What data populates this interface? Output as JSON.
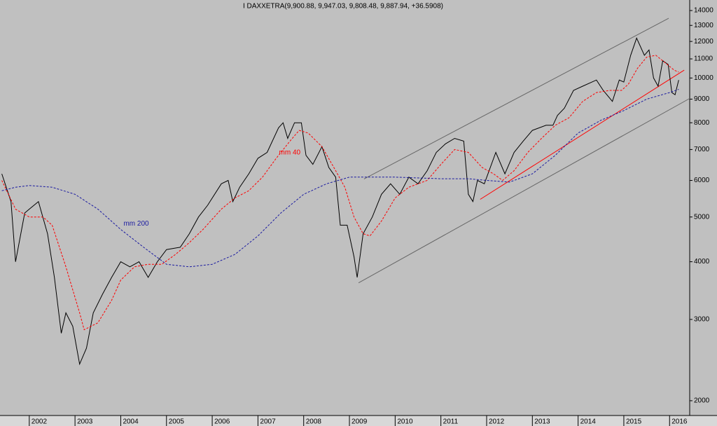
{
  "chart_data": {
    "type": "line",
    "title": "I DAXXETRA(9,900.88, 9,947.03, 9,808.48, 9,887.94, +36.5908)",
    "log_scale": true,
    "xlim": [
      2001.36,
      2016.44
    ],
    "xticks": [
      2002,
      2003,
      2004,
      2005,
      2006,
      2007,
      2008,
      2009,
      2010,
      2011,
      2012,
      2013,
      2014,
      2015,
      2016
    ],
    "ylim": [
      1858,
      14755
    ],
    "yticks": [
      2000,
      3000,
      4000,
      5000,
      6000,
      7000,
      8000,
      9000,
      10000,
      11000,
      12000,
      13000,
      14000
    ],
    "series": [
      {
        "color": "#000000",
        "line_style": "solid",
        "x": [
          2001.4,
          2001.6,
          2001.7,
          2001.9,
          2002.0,
          2002.2,
          2002.4,
          2002.55,
          2002.7,
          2002.8,
          2002.95,
          2003.1,
          2003.25,
          2003.4,
          2003.6,
          2003.8,
          2004.0,
          2004.2,
          2004.4,
          2004.6,
          2004.8,
          2005.0,
          2005.3,
          2005.5,
          2005.7,
          2005.9,
          2006.2,
          2006.35,
          2006.45,
          2006.6,
          2006.8,
          2007.0,
          2007.2,
          2007.45,
          2007.55,
          2007.65,
          2007.8,
          2007.95,
          2008.05,
          2008.2,
          2008.4,
          2008.55,
          2008.7,
          2008.8,
          2008.95,
          2009.1,
          2009.17,
          2009.3,
          2009.5,
          2009.7,
          2009.9,
          2010.1,
          2010.3,
          2010.5,
          2010.7,
          2010.9,
          2011.1,
          2011.3,
          2011.5,
          2011.6,
          2011.7,
          2011.8,
          2011.95,
          2012.2,
          2012.4,
          2012.6,
          2012.8,
          2013.0,
          2013.3,
          2013.45,
          2013.55,
          2013.7,
          2013.9,
          2014.1,
          2014.4,
          2014.55,
          2014.75,
          2014.9,
          2015.0,
          2015.15,
          2015.28,
          2015.45,
          2015.55,
          2015.65,
          2015.75,
          2015.85,
          2015.97,
          2016.05,
          2016.12,
          2016.2
        ],
        "values": [
          6200,
          5400,
          4000,
          5100,
          5200,
          5400,
          4600,
          3700,
          2800,
          3100,
          2900,
          2400,
          2600,
          3100,
          3400,
          3700,
          4000,
          3900,
          4000,
          3700,
          4000,
          4250,
          4300,
          4600,
          5000,
          5300,
          5900,
          6000,
          5400,
          5800,
          6200,
          6700,
          6900,
          7800,
          8000,
          7400,
          8000,
          8000,
          6800,
          6500,
          7100,
          6400,
          6100,
          4800,
          4800,
          4100,
          3700,
          4600,
          5000,
          5600,
          5900,
          5600,
          6100,
          5900,
          6300,
          6900,
          7200,
          7400,
          7300,
          5600,
          5400,
          6000,
          5900,
          6900,
          6200,
          6900,
          7300,
          7700,
          7900,
          7900,
          8300,
          8600,
          9400,
          9600,
          9900,
          9400,
          8900,
          9900,
          9800,
          11200,
          12200,
          11200,
          11500,
          10000,
          9600,
          10900,
          10700,
          9300,
          9200,
          9900
        ]
      },
      {
        "name": "mm 40",
        "color": "#ff0000",
        "line_style": "dashed",
        "label_at": [
          2001.36,
          2007.4,
          5950
        ],
        "x": [
          2001.4,
          2001.7,
          2002.0,
          2002.3,
          2002.5,
          2002.8,
          2003.1,
          2003.2,
          2003.5,
          2003.8,
          2004.0,
          2004.3,
          2004.6,
          2004.9,
          2005.2,
          2005.5,
          2005.8,
          2006.2,
          2006.5,
          2006.8,
          2007.1,
          2007.4,
          2007.7,
          2007.9,
          2008.1,
          2008.4,
          2008.7,
          2008.9,
          2009.1,
          2009.3,
          2009.45,
          2009.7,
          2010.0,
          2010.3,
          2010.7,
          2011.0,
          2011.3,
          2011.6,
          2011.9,
          2012.15,
          2012.35,
          2012.6,
          2012.9,
          2013.2,
          2013.5,
          2013.8,
          2014.1,
          2014.4,
          2014.7,
          2014.95,
          2015.1,
          2015.3,
          2015.5,
          2015.7,
          2015.9,
          2016.1,
          2016.2
        ],
        "values": [
          6000,
          5200,
          5000,
          5000,
          4800,
          3900,
          3100,
          2850,
          2950,
          3300,
          3650,
          3900,
          3950,
          3950,
          4150,
          4400,
          4700,
          5200,
          5500,
          5700,
          6100,
          6700,
          7300,
          7700,
          7600,
          7100,
          6300,
          5800,
          5000,
          4600,
          4550,
          4900,
          5500,
          5800,
          6000,
          6500,
          7000,
          6900,
          6400,
          6200,
          6000,
          6300,
          6900,
          7400,
          7900,
          8200,
          8900,
          9300,
          9400,
          9400,
          9700,
          10500,
          11100,
          11200,
          10800,
          10400,
          10300
        ]
      },
      {
        "name": "mm 200",
        "color": "#1a1aa0",
        "line_style": "dashed",
        "x": [
          2001.4,
          2001.7,
          2002.0,
          2002.5,
          2003.0,
          2003.5,
          2004.0,
          2004.5,
          2005.0,
          2005.5,
          2006.0,
          2006.5,
          2007.0,
          2007.5,
          2008.0,
          2008.5,
          2009.0,
          2010.0,
          2011.0,
          2011.6,
          2012.0,
          2012.5,
          2013.0,
          2013.5,
          2014.0,
          2014.5,
          2015.0,
          2015.5,
          2016.0,
          2016.2
        ],
        "values": [
          5700,
          5800,
          5850,
          5800,
          5600,
          5200,
          4700,
          4300,
          3950,
          3900,
          3950,
          4150,
          4550,
          5100,
          5600,
          5900,
          6100,
          6100,
          6050,
          6050,
          6000,
          5950,
          6200,
          6800,
          7600,
          8100,
          8500,
          9000,
          9300,
          9450
        ]
      }
    ],
    "trend_lines": [
      {
        "color": "#666666",
        "x": [
          2009.32,
          2015.98
        ],
        "values": [
          6045,
          13470
        ]
      },
      {
        "color": "#666666",
        "x": [
          2009.2,
          2016.44
        ],
        "values": [
          3600,
          9030
        ]
      },
      {
        "color": "#ff0000",
        "x": [
          2011.86,
          2016.32
        ],
        "values": [
          5460,
          10400
        ]
      }
    ]
  }
}
